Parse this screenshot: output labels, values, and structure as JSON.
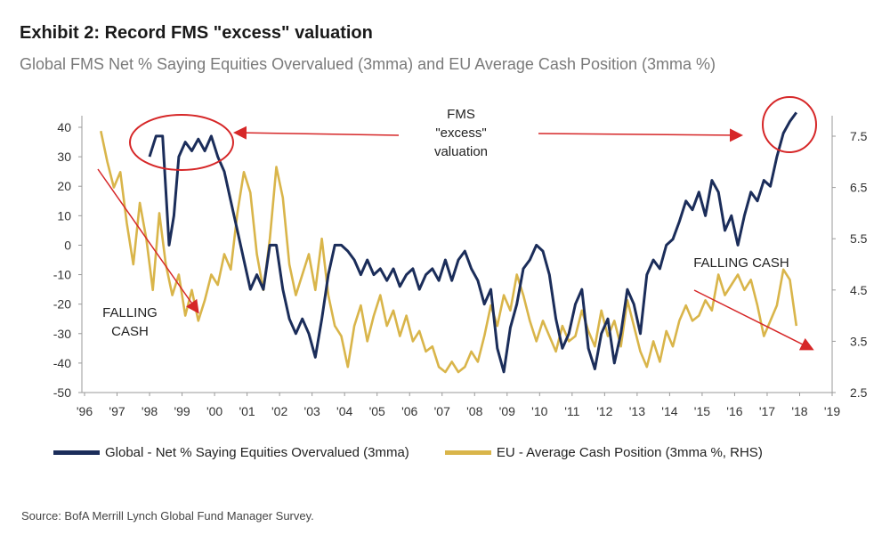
{
  "title": "Exhibit 2: Record FMS \"excess\" valuation",
  "subtitle": "Global FMS Net % Saying Equities Overvalued (3mma) and EU Average Cash Position (3mma %)",
  "source": "Source: BofA Merrill Lynch Global Fund Manager Survey.",
  "colors": {
    "global": "#1b2d5a",
    "cash": "#d9b54a",
    "annotation": "#d62728",
    "axis": "#999999"
  },
  "chart_data": {
    "type": "line",
    "x_tick_labels": [
      "'96",
      "'97",
      "'98",
      "'99",
      "'00",
      "'01",
      "'02",
      "'03",
      "'04",
      "'05",
      "'06",
      "'07",
      "'08",
      "'09",
      "'10",
      "'11",
      "'12",
      "'13",
      "'14",
      "'15",
      "'16",
      "'17",
      "'18",
      "'19"
    ],
    "xlim": [
      1996,
      2019
    ],
    "ylim_left": [
      -50,
      45
    ],
    "yticks_left": [
      40,
      30,
      20,
      10,
      0,
      -10,
      -20,
      -30,
      -40,
      -50
    ],
    "ylim_right": [
      2.5,
      8.0
    ],
    "yticks_right": [
      "7.5",
      "6.5",
      "5.5",
      "4.5",
      "3.5",
      "2.5"
    ],
    "yticks_right_values": [
      7.5,
      6.5,
      5.5,
      4.5,
      3.5,
      2.5
    ],
    "series": [
      {
        "name": "Global - Net % Saying Equities Overvalued (3mma)",
        "axis": "left",
        "points": [
          [
            1998.0,
            30
          ],
          [
            1998.2,
            37
          ],
          [
            1998.4,
            37
          ],
          [
            1998.6,
            0
          ],
          [
            1998.75,
            10
          ],
          [
            1998.9,
            30
          ],
          [
            1999.1,
            35
          ],
          [
            1999.3,
            32
          ],
          [
            1999.5,
            36
          ],
          [
            1999.7,
            32
          ],
          [
            1999.9,
            37
          ],
          [
            2000.1,
            30
          ],
          [
            2000.3,
            25
          ],
          [
            2000.5,
            15
          ],
          [
            2000.7,
            5
          ],
          [
            2000.9,
            -5
          ],
          [
            2001.1,
            -15
          ],
          [
            2001.3,
            -10
          ],
          [
            2001.5,
            -15
          ],
          [
            2001.7,
            0
          ],
          [
            2001.9,
            0
          ],
          [
            2002.1,
            -15
          ],
          [
            2002.3,
            -25
          ],
          [
            2002.5,
            -30
          ],
          [
            2002.7,
            -25
          ],
          [
            2002.9,
            -30
          ],
          [
            2003.1,
            -38
          ],
          [
            2003.3,
            -25
          ],
          [
            2003.5,
            -10
          ],
          [
            2003.7,
            0
          ],
          [
            2003.9,
            0
          ],
          [
            2004.1,
            -2
          ],
          [
            2004.3,
            -5
          ],
          [
            2004.5,
            -10
          ],
          [
            2004.7,
            -5
          ],
          [
            2004.9,
            -10
          ],
          [
            2005.1,
            -8
          ],
          [
            2005.3,
            -12
          ],
          [
            2005.5,
            -8
          ],
          [
            2005.7,
            -14
          ],
          [
            2005.9,
            -10
          ],
          [
            2006.1,
            -8
          ],
          [
            2006.3,
            -15
          ],
          [
            2006.5,
            -10
          ],
          [
            2006.7,
            -8
          ],
          [
            2006.9,
            -12
          ],
          [
            2007.1,
            -5
          ],
          [
            2007.3,
            -12
          ],
          [
            2007.5,
            -5
          ],
          [
            2007.7,
            -2
          ],
          [
            2007.9,
            -8
          ],
          [
            2008.1,
            -12
          ],
          [
            2008.3,
            -20
          ],
          [
            2008.5,
            -15
          ],
          [
            2008.7,
            -35
          ],
          [
            2008.9,
            -43
          ],
          [
            2009.1,
            -28
          ],
          [
            2009.3,
            -20
          ],
          [
            2009.5,
            -8
          ],
          [
            2009.7,
            -5
          ],
          [
            2009.9,
            0
          ],
          [
            2010.1,
            -2
          ],
          [
            2010.3,
            -10
          ],
          [
            2010.5,
            -25
          ],
          [
            2010.7,
            -35
          ],
          [
            2010.9,
            -30
          ],
          [
            2011.1,
            -20
          ],
          [
            2011.3,
            -15
          ],
          [
            2011.5,
            -35
          ],
          [
            2011.7,
            -42
          ],
          [
            2011.9,
            -30
          ],
          [
            2012.1,
            -25
          ],
          [
            2012.3,
            -40
          ],
          [
            2012.5,
            -30
          ],
          [
            2012.7,
            -15
          ],
          [
            2012.9,
            -20
          ],
          [
            2013.1,
            -30
          ],
          [
            2013.3,
            -10
          ],
          [
            2013.5,
            -5
          ],
          [
            2013.7,
            -8
          ],
          [
            2013.9,
            0
          ],
          [
            2014.1,
            2
          ],
          [
            2014.3,
            8
          ],
          [
            2014.5,
            15
          ],
          [
            2014.7,
            12
          ],
          [
            2014.9,
            18
          ],
          [
            2015.1,
            10
          ],
          [
            2015.3,
            22
          ],
          [
            2015.5,
            18
          ],
          [
            2015.7,
            5
          ],
          [
            2015.9,
            10
          ],
          [
            2016.1,
            0
          ],
          [
            2016.3,
            10
          ],
          [
            2016.5,
            18
          ],
          [
            2016.7,
            15
          ],
          [
            2016.9,
            22
          ],
          [
            2017.1,
            20
          ],
          [
            2017.3,
            30
          ],
          [
            2017.5,
            38
          ],
          [
            2017.7,
            42
          ],
          [
            2017.9,
            45
          ]
        ]
      },
      {
        "name": "EU - Average Cash Position (3mma %, RHS)",
        "axis": "right",
        "points": [
          [
            1996.5,
            7.6
          ],
          [
            1996.7,
            7.0
          ],
          [
            1996.9,
            6.5
          ],
          [
            1997.1,
            6.8
          ],
          [
            1997.3,
            5.8
          ],
          [
            1997.5,
            5.0
          ],
          [
            1997.7,
            6.2
          ],
          [
            1997.9,
            5.5
          ],
          [
            1998.1,
            4.5
          ],
          [
            1998.3,
            6.0
          ],
          [
            1998.5,
            5.0
          ],
          [
            1998.7,
            4.4
          ],
          [
            1998.9,
            4.8
          ],
          [
            1999.1,
            4.0
          ],
          [
            1999.3,
            4.5
          ],
          [
            1999.5,
            3.9
          ],
          [
            1999.7,
            4.3
          ],
          [
            1999.9,
            4.8
          ],
          [
            2000.1,
            4.6
          ],
          [
            2000.3,
            5.2
          ],
          [
            2000.5,
            4.9
          ],
          [
            2000.7,
            6.0
          ],
          [
            2000.9,
            6.8
          ],
          [
            2001.1,
            6.4
          ],
          [
            2001.3,
            5.2
          ],
          [
            2001.5,
            4.5
          ],
          [
            2001.7,
            5.5
          ],
          [
            2001.9,
            6.9
          ],
          [
            2002.1,
            6.3
          ],
          [
            2002.3,
            5.0
          ],
          [
            2002.5,
            4.4
          ],
          [
            2002.7,
            4.8
          ],
          [
            2002.9,
            5.2
          ],
          [
            2003.1,
            4.5
          ],
          [
            2003.3,
            5.5
          ],
          [
            2003.5,
            4.4
          ],
          [
            2003.7,
            3.8
          ],
          [
            2003.9,
            3.6
          ],
          [
            2004.1,
            3.0
          ],
          [
            2004.3,
            3.8
          ],
          [
            2004.5,
            4.2
          ],
          [
            2004.7,
            3.5
          ],
          [
            2004.9,
            4.0
          ],
          [
            2005.1,
            4.4
          ],
          [
            2005.3,
            3.8
          ],
          [
            2005.5,
            4.1
          ],
          [
            2005.7,
            3.6
          ],
          [
            2005.9,
            4.0
          ],
          [
            2006.1,
            3.5
          ],
          [
            2006.3,
            3.7
          ],
          [
            2006.5,
            3.3
          ],
          [
            2006.7,
            3.4
          ],
          [
            2006.9,
            3.0
          ],
          [
            2007.1,
            2.9
          ],
          [
            2007.3,
            3.1
          ],
          [
            2007.5,
            2.9
          ],
          [
            2007.7,
            3.0
          ],
          [
            2007.9,
            3.3
          ],
          [
            2008.1,
            3.1
          ],
          [
            2008.3,
            3.6
          ],
          [
            2008.5,
            4.2
          ],
          [
            2008.7,
            3.8
          ],
          [
            2008.9,
            4.4
          ],
          [
            2009.1,
            4.1
          ],
          [
            2009.3,
            4.8
          ],
          [
            2009.5,
            4.4
          ],
          [
            2009.7,
            3.9
          ],
          [
            2009.9,
            3.5
          ],
          [
            2010.1,
            3.9
          ],
          [
            2010.3,
            3.6
          ],
          [
            2010.5,
            3.3
          ],
          [
            2010.7,
            3.8
          ],
          [
            2010.9,
            3.5
          ],
          [
            2011.1,
            3.6
          ],
          [
            2011.3,
            4.1
          ],
          [
            2011.5,
            3.7
          ],
          [
            2011.7,
            3.4
          ],
          [
            2011.9,
            4.1
          ],
          [
            2012.1,
            3.6
          ],
          [
            2012.3,
            3.9
          ],
          [
            2012.5,
            3.4
          ],
          [
            2012.7,
            4.3
          ],
          [
            2012.9,
            3.8
          ],
          [
            2013.1,
            3.3
          ],
          [
            2013.3,
            3.0
          ],
          [
            2013.5,
            3.5
          ],
          [
            2013.7,
            3.1
          ],
          [
            2013.9,
            3.7
          ],
          [
            2014.1,
            3.4
          ],
          [
            2014.3,
            3.9
          ],
          [
            2014.5,
            4.2
          ],
          [
            2014.7,
            3.9
          ],
          [
            2014.9,
            4.0
          ],
          [
            2015.1,
            4.3
          ],
          [
            2015.3,
            4.1
          ],
          [
            2015.5,
            4.8
          ],
          [
            2015.7,
            4.4
          ],
          [
            2015.9,
            4.6
          ],
          [
            2016.1,
            4.8
          ],
          [
            2016.3,
            4.5
          ],
          [
            2016.5,
            4.7
          ],
          [
            2016.7,
            4.2
          ],
          [
            2016.9,
            3.6
          ],
          [
            2017.1,
            3.9
          ],
          [
            2017.3,
            4.2
          ],
          [
            2017.5,
            4.9
          ],
          [
            2017.7,
            4.7
          ],
          [
            2017.9,
            3.8
          ]
        ]
      }
    ],
    "annotations": [
      {
        "text_lines": [
          "FMS",
          "\"excess\"",
          "valuation"
        ]
      },
      {
        "text_lines": [
          "FALLING",
          "CASH"
        ]
      },
      {
        "text_lines": [
          "FALLING CASH"
        ]
      }
    ],
    "legend_placement": "bottom",
    "grid": false
  }
}
